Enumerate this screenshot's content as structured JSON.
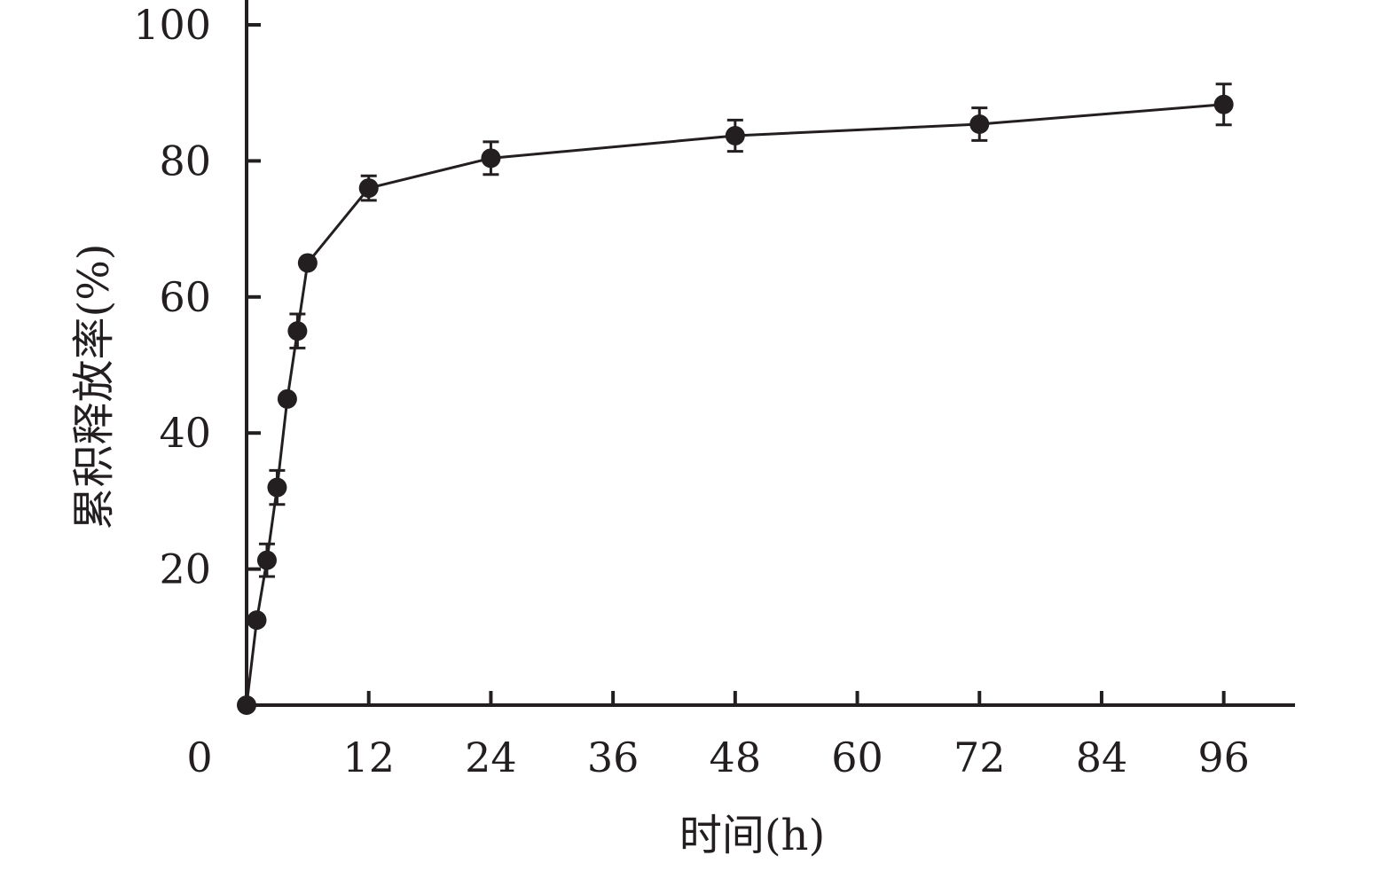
{
  "chart_data": {
    "type": "line",
    "xlabel": "时间(h)",
    "ylabel": "累积释放率(%)",
    "xlim": [
      0,
      103
    ],
    "ylim": [
      0,
      100
    ],
    "x_ticks": [
      0,
      12,
      24,
      36,
      48,
      60,
      72,
      84,
      96
    ],
    "y_ticks": [
      20,
      40,
      60,
      80,
      100
    ],
    "grid": false,
    "color": "#231f20",
    "series": [
      {
        "x": [
          0,
          1,
          2,
          3,
          4,
          5,
          6,
          12,
          24,
          48,
          72,
          96
        ],
        "y": [
          0,
          12.5,
          21.3,
          32.0,
          45.0,
          55.0,
          65.0,
          76.0,
          80.4,
          83.7,
          85.4,
          88.3
        ],
        "err": [
          0,
          0,
          2.4,
          2.5,
          0,
          2.5,
          0,
          1.8,
          2.4,
          2.3,
          2.4,
          3.0
        ]
      }
    ]
  }
}
